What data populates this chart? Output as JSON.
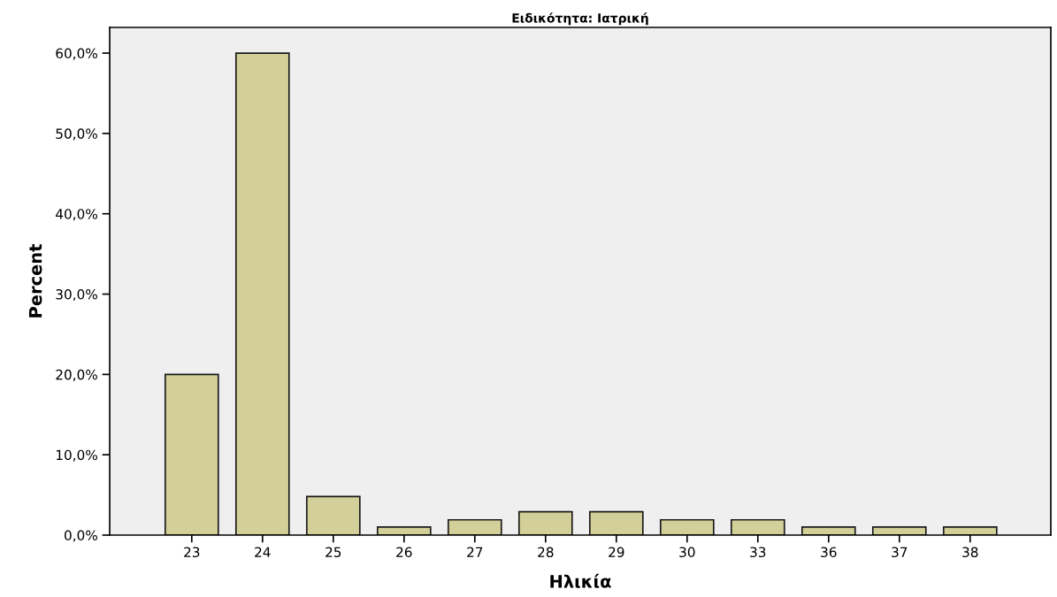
{
  "chart_data": {
    "type": "bar",
    "title": "Ειδικότητα: Ιατρική",
    "xlabel": "Ηλικία",
    "ylabel": "Percent",
    "categories": [
      "23",
      "24",
      "25",
      "26",
      "27",
      "28",
      "29",
      "30",
      "33",
      "36",
      "37",
      "38"
    ],
    "values": [
      20.0,
      60.0,
      4.8,
      1.0,
      1.9,
      2.9,
      2.9,
      1.9,
      1.9,
      1.0,
      1.0,
      1.0
    ],
    "color": "#d3cf98",
    "ylim": [
      0,
      63.2
    ],
    "yticks": [
      {
        "value": 0,
        "label": "0,0%"
      },
      {
        "value": 10,
        "label": "10,0%"
      },
      {
        "value": 20,
        "label": "20,0%"
      },
      {
        "value": 30,
        "label": "30,0%"
      },
      {
        "value": 40,
        "label": "40,0%"
      },
      {
        "value": 50,
        "label": "50,0%"
      },
      {
        "value": 60,
        "label": "60,0%"
      }
    ],
    "grid": false,
    "legend": false
  }
}
